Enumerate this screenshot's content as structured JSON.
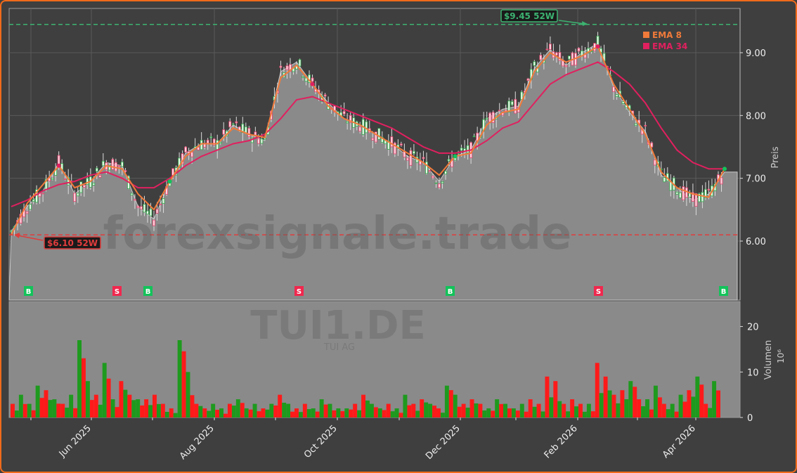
{
  "chart_data": {
    "type": "candlestick",
    "ticker": "TUI1.DE",
    "company": "TUI AG",
    "watermark": "forexsignale.trade",
    "colors": {
      "frame": "#f26a1b",
      "background": "#3f3f3f",
      "plot_fill": "#8a8a8a",
      "up_volume": "#1e9a1e",
      "down_volume": "#ff1a1a",
      "ema8": "#f07a3a",
      "ema34": "#e0205f",
      "high_line": "#3cb371",
      "low_line": "#e03c3c",
      "buy_badge": "#13c35a",
      "sell_badge": "#f0284e"
    },
    "price_panel": {
      "ylabel": "Preis",
      "yticks": [
        "6.00",
        "7.00",
        "8.00",
        "9.00"
      ],
      "ylim": [
        5.0,
        9.6
      ],
      "week52_high": {
        "value": 9.45,
        "label": "$9.45 52W"
      },
      "week52_low": {
        "value": 6.1,
        "label": "$6.10 52W"
      },
      "last_close": 7.1,
      "legend": [
        {
          "label": "EMA 8",
          "color": "#f07a3a"
        },
        {
          "label": "EMA 34",
          "color": "#e0205f"
        }
      ]
    },
    "volume_panel": {
      "ylabel": "Volumen",
      "unit": "10⁶",
      "yticks": [
        "0",
        "10",
        "20"
      ],
      "ylim": [
        0,
        25
      ]
    },
    "x_axis": {
      "tick_labels": [
        "Jun 2025",
        "Aug 2025",
        "Oct 2025",
        "Dec 2025",
        "Feb 2026",
        "Apr 2026"
      ],
      "range": [
        "Apr 2025",
        "Apr 2026"
      ]
    },
    "signals": [
      {
        "type": "B",
        "date": "Apr 2025"
      },
      {
        "type": "S",
        "date": "Jun 2025"
      },
      {
        "type": "B",
        "date": "Jul 2025"
      },
      {
        "type": "S",
        "date": "Sep 2025"
      },
      {
        "type": "B",
        "date": "Nov 2025"
      },
      {
        "type": "S",
        "date": "Feb 2026"
      },
      {
        "type": "B",
        "date": "Apr 2026"
      }
    ],
    "price_series": {
      "close_approx": [
        6.15,
        6.55,
        6.8,
        7.25,
        6.75,
        6.95,
        7.25,
        7.2,
        6.55,
        6.35,
        6.95,
        7.4,
        7.55,
        7.55,
        7.85,
        7.7,
        7.6,
        8.7,
        8.85,
        8.5,
        8.2,
        7.95,
        7.85,
        7.7,
        7.55,
        7.35,
        7.25,
        6.95,
        7.35,
        7.45,
        7.95,
        8.1,
        8.15,
        8.75,
        9.05,
        8.8,
        9.0,
        9.15,
        8.45,
        8.05,
        7.75,
        7.05,
        6.85,
        6.65,
        6.75,
        7.1
      ],
      "ema8_approx": [
        6.1,
        6.6,
        6.9,
        7.2,
        6.85,
        6.95,
        7.2,
        7.15,
        6.75,
        6.5,
        6.95,
        7.35,
        7.55,
        7.55,
        7.8,
        7.7,
        7.65,
        8.6,
        8.8,
        8.5,
        8.15,
        7.95,
        7.85,
        7.7,
        7.55,
        7.4,
        7.25,
        7.05,
        7.35,
        7.4,
        7.85,
        8.05,
        8.1,
        8.7,
        9.0,
        8.85,
        8.95,
        9.1,
        8.5,
        8.1,
        7.7,
        7.1,
        6.85,
        6.75,
        6.7,
        7.15
      ],
      "ema34_approx": [
        6.55,
        6.65,
        6.8,
        6.9,
        6.95,
        7.05,
        7.1,
        7.0,
        6.85,
        6.85,
        7.0,
        7.2,
        7.35,
        7.45,
        7.55,
        7.6,
        7.7,
        7.95,
        8.25,
        8.3,
        8.2,
        8.1,
        8.0,
        7.9,
        7.8,
        7.65,
        7.5,
        7.4,
        7.4,
        7.45,
        7.6,
        7.8,
        7.9,
        8.2,
        8.5,
        8.65,
        8.75,
        8.85,
        8.7,
        8.5,
        8.2,
        7.8,
        7.45,
        7.25,
        7.15,
        7.15
      ]
    },
    "volume_series_approx": [
      3,
      5,
      3,
      7,
      6,
      4,
      3,
      5,
      17,
      8,
      5,
      12,
      4,
      8,
      5,
      4,
      4,
      5,
      3,
      2,
      17,
      10,
      3,
      2,
      3,
      2,
      3,
      4,
      2,
      3,
      2,
      3,
      5,
      3,
      2,
      3,
      2,
      4,
      3,
      2,
      2,
      3,
      5,
      3,
      2,
      3,
      2,
      5,
      3,
      4,
      3,
      2,
      7,
      5,
      3,
      4,
      3,
      2,
      4,
      3,
      2,
      3,
      4,
      3,
      9,
      8,
      3,
      4,
      3,
      3,
      12,
      9,
      5,
      6,
      8,
      4,
      4,
      7,
      3,
      3,
      5,
      6,
      9,
      3,
      8
    ]
  }
}
